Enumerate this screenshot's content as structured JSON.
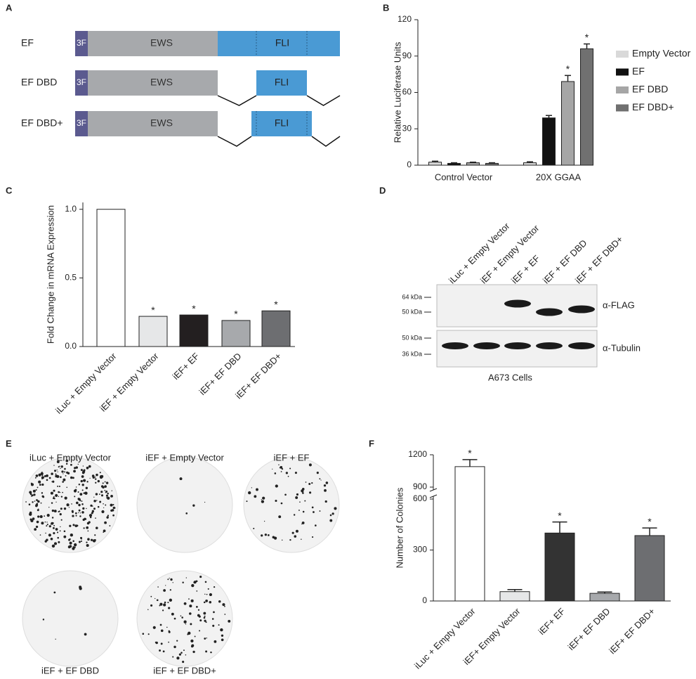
{
  "panel_letters": [
    "A",
    "B",
    "C",
    "D",
    "E",
    "F"
  ],
  "diagram": {
    "rows": [
      {
        "label": "EF",
        "parts": [
          "3F",
          "EWS",
          "FLI"
        ]
      },
      {
        "label": "EF DBD",
        "parts": [
          "3F",
          "EWS",
          "FLI"
        ]
      },
      {
        "label": "EF DBD+",
        "parts": [
          "3F",
          "EWS",
          "FLI"
        ]
      }
    ]
  },
  "chart_data": [
    {
      "type": "bar",
      "y_label": "Relative Luciferase Units",
      "categories": [
        "Control Vector",
        "20X GGAA"
      ],
      "series": [
        {
          "name": "Empty Vector",
          "color": "#d9d9d9",
          "values": [
            2.5,
            2
          ],
          "errors": [
            0.8,
            0.8
          ],
          "significance": [
            null,
            null
          ]
        },
        {
          "name": "EF",
          "color": "#111111",
          "values": [
            1.5,
            39
          ],
          "errors": [
            0.5,
            2
          ],
          "significance": [
            null,
            null
          ]
        },
        {
          "name": "EF DBD",
          "color": "#a6a6a6",
          "values": [
            2,
            69
          ],
          "errors": [
            0.5,
            5
          ],
          "significance": [
            null,
            "*"
          ]
        },
        {
          "name": "EF DBD+",
          "color": "#707070",
          "values": [
            1.5,
            96
          ],
          "errors": [
            0.5,
            4
          ],
          "significance": [
            null,
            "*"
          ]
        }
      ],
      "ylim": [
        0,
        120
      ],
      "yticks": [
        0,
        30,
        60,
        90,
        120
      ],
      "legend": "right"
    },
    {
      "type": "bar",
      "y_label": "Fold Change in mRNA Expression",
      "categories": [
        "iLuc + Empty Vector",
        "iEF + Empty Vector",
        "iEF+ EF",
        "iEF+ EF DBD",
        "iEF+ EF DBD+"
      ],
      "values": [
        1.0,
        0.22,
        0.23,
        0.19,
        0.26
      ],
      "colors": [
        "#ffffff",
        "#e6e7e8",
        "#231f20",
        "#a7a9ac",
        "#6d6e71"
      ],
      "significance": [
        null,
        "*",
        "*",
        "*",
        "*"
      ],
      "ylim": [
        0,
        1.05
      ],
      "yticks": [
        {
          "value": 0,
          "label": "0.0"
        },
        0.5,
        {
          "value": 1,
          "label": "1.0"
        }
      ]
    },
    {
      "type": "bar",
      "y_label": "Number of Colonies",
      "categories": [
        "iLuc + Empty Vector",
        "iEF+ Empty Vector",
        "iEF+ EF",
        "iEF+ EF DBD",
        "iEF+ EF DBD+"
      ],
      "values": [
        1090,
        55,
        400,
        45,
        385
      ],
      "errors": [
        65,
        12,
        65,
        8,
        45
      ],
      "colors": [
        "#ffffff",
        "#e6e7e8",
        "#333333",
        "#a7a9ac",
        "#6d6e71"
      ],
      "significance": [
        "*",
        null,
        "*",
        null,
        "*"
      ],
      "ylim": [
        0,
        1200
      ],
      "axis_break": [
        600,
        900
      ],
      "yticks": [
        0,
        300,
        600,
        900,
        1200
      ]
    }
  ],
  "blot": {
    "lanes": [
      "iLuc + Empty Vector",
      "iEF + Empty Vector",
      "iEF + EF",
      "iEF + EF DBD",
      "iEF + EF DBD+"
    ],
    "markers": [
      "64 kDa",
      "50 kDa",
      "50 kDa",
      "36 kDa"
    ],
    "antibodies": [
      "α-FLAG",
      "α-Tubulin"
    ],
    "caption": "A673 Cells"
  },
  "colony_plates": [
    "iLuc + Empty Vector",
    "iEF + Empty Vector",
    "iEF + EF",
    "iEF + EF DBD",
    "iEF + EF DBD+"
  ]
}
